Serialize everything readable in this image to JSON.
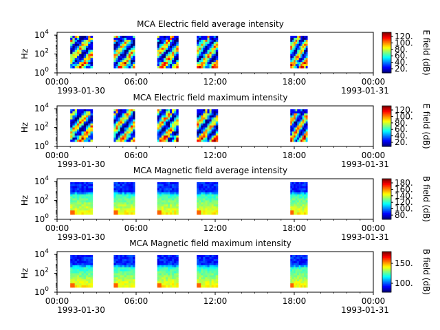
{
  "chart_data": [
    {
      "type": "heatmap",
      "title": "MCA  Electric field average intensity",
      "ylabel": "Hz",
      "y_scale": "log",
      "y_ticks": [
        {
          "exp": "0"
        },
        {
          "exp": "2"
        },
        {
          "exp": "4"
        }
      ],
      "x_tick_labels": [
        "00:00",
        "06:00",
        "12:00",
        "18:00",
        "00:00"
      ],
      "x_range": [
        "1993-01-30",
        "1993-01-31"
      ],
      "x_dates": {
        "start": "1993-01-30",
        "end": "1993-01-31"
      },
      "colorbar_label": "E field (dB)",
      "colorbar_ticks": [
        "20.",
        "40.",
        "60.",
        "80.",
        "100.",
        "120."
      ],
      "colormap": "jet",
      "data_windows_hours": [
        [
          1.0,
          2.7
        ],
        [
          4.3,
          5.9
        ],
        [
          7.6,
          9.2
        ],
        [
          10.6,
          12.2
        ],
        [
          17.7,
          19.0
        ]
      ],
      "signal": "electric"
    },
    {
      "type": "heatmap",
      "title": "MCA  Electric field maximum intensity",
      "ylabel": "Hz",
      "y_scale": "log",
      "y_ticks": [
        {
          "exp": "0"
        },
        {
          "exp": "2"
        },
        {
          "exp": "4"
        }
      ],
      "x_tick_labels": [
        "00:00",
        "06:00",
        "12:00",
        "18:00",
        "00:00"
      ],
      "x_range": [
        "1993-01-30",
        "1993-01-31"
      ],
      "x_dates": {
        "start": "1993-01-30",
        "end": "1993-01-31"
      },
      "colorbar_label": "E field (dB)",
      "colorbar_ticks": [
        "20.",
        "40.",
        "60.",
        "80.",
        "100.",
        "120."
      ],
      "colormap": "jet",
      "data_windows_hours": [
        [
          1.0,
          2.7
        ],
        [
          4.3,
          5.9
        ],
        [
          7.6,
          9.2
        ],
        [
          10.6,
          12.2
        ],
        [
          17.7,
          19.0
        ]
      ],
      "signal": "electric"
    },
    {
      "type": "heatmap",
      "title": "MCA  Magnetic field average intensity",
      "ylabel": "Hz",
      "y_scale": "log",
      "y_ticks": [
        {
          "exp": "0"
        },
        {
          "exp": "2"
        },
        {
          "exp": "4"
        }
      ],
      "x_tick_labels": [
        "00:00",
        "06:00",
        "12:00",
        "18:00",
        "00:00"
      ],
      "x_range": [
        "1993-01-30",
        "1993-01-31"
      ],
      "x_dates": {
        "start": "1993-01-30",
        "end": "1993-01-31"
      },
      "colorbar_label": "B field (dB)",
      "colorbar_ticks": [
        "80.",
        "100.",
        "120.",
        "140.",
        "160.",
        "180."
      ],
      "colormap": "jet",
      "data_windows_hours": [
        [
          1.0,
          2.7
        ],
        [
          4.3,
          5.9
        ],
        [
          7.6,
          9.2
        ],
        [
          10.6,
          12.2
        ],
        [
          17.7,
          19.0
        ]
      ],
      "signal": "magnetic"
    },
    {
      "type": "heatmap",
      "title": "MCA  Magnetic field maximum intensity",
      "ylabel": "Hz",
      "y_scale": "log",
      "y_ticks": [
        {
          "exp": "0"
        },
        {
          "exp": "2"
        },
        {
          "exp": "4"
        }
      ],
      "x_tick_labels": [
        "00:00",
        "06:00",
        "12:00",
        "18:00",
        "00:00"
      ],
      "x_range": [
        "1993-01-30",
        "1993-01-31"
      ],
      "x_dates": {
        "start": "1993-01-30",
        "end": "1993-01-31"
      },
      "colorbar_label": "B field (dB)",
      "colorbar_ticks": [
        "100.",
        "150."
      ],
      "colormap": "jet",
      "data_windows_hours": [
        [
          1.0,
          2.7
        ],
        [
          4.3,
          5.9
        ],
        [
          7.6,
          9.2
        ],
        [
          10.6,
          12.2
        ],
        [
          17.7,
          19.0
        ]
      ],
      "signal": "magnetic"
    }
  ]
}
